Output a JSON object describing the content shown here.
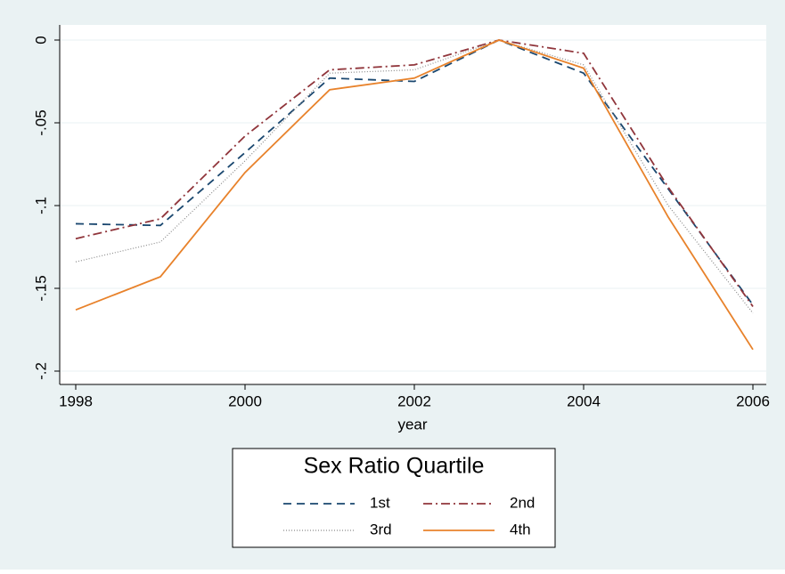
{
  "chart_data": {
    "type": "line",
    "x": [
      1998,
      1999,
      2000,
      2001,
      2002,
      2003,
      2004,
      2005,
      2006
    ],
    "xlabel": "year",
    "xlim": [
      1998,
      2006
    ],
    "xticks": [
      1998,
      2000,
      2002,
      2004,
      2006
    ],
    "ylim": [
      -0.2,
      0
    ],
    "yticks": [
      0,
      {
        "value": -0.05,
        "label": "-.05"
      },
      {
        "value": -0.1,
        "label": "-.1"
      },
      {
        "value": -0.15,
        "label": "-.15"
      },
      {
        "value": -0.2,
        "label": "-.2"
      }
    ],
    "grid": true,
    "legend_title": "Sex Ratio Quartile",
    "legend": "bottom",
    "series": [
      {
        "name": "1st",
        "color": "#1a476f",
        "dash": "9 6",
        "values": [
          -0.111,
          -0.112,
          -0.068,
          -0.023,
          -0.025,
          0,
          -0.02,
          -0.09,
          -0.16
        ]
      },
      {
        "name": "2nd",
        "color": "#90353b",
        "dash": "10 4 2 4",
        "values": [
          -0.12,
          -0.108,
          -0.058,
          -0.018,
          -0.015,
          0,
          -0.008,
          -0.089,
          -0.161
        ]
      },
      {
        "name": "3rd",
        "color": "#8a8a8a",
        "dash": "1 2",
        "values": [
          -0.134,
          -0.122,
          -0.073,
          -0.02,
          -0.018,
          0,
          -0.015,
          -0.1,
          -0.165
        ]
      },
      {
        "name": "4th",
        "color": "#e8822b",
        "dash": "none",
        "values": [
          -0.163,
          -0.143,
          -0.08,
          -0.03,
          -0.023,
          0,
          -0.017,
          -0.107,
          -0.187
        ]
      }
    ]
  }
}
